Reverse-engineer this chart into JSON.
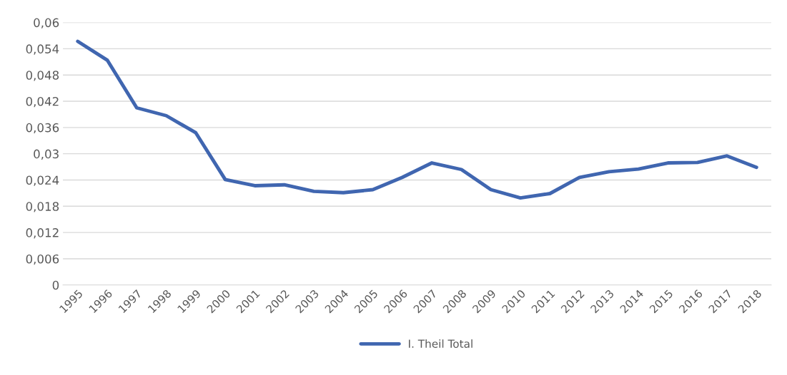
{
  "chart_data": {
    "type": "line",
    "categories": [
      "1995",
      "1996",
      "1997",
      "1998",
      "1999",
      "2000",
      "2001",
      "2002",
      "2003",
      "2004",
      "2005",
      "2006",
      "2007",
      "2008",
      "2009",
      "2010",
      "2011",
      "2012",
      "2013",
      "2014",
      "2015",
      "2016",
      "2017",
      "2018"
    ],
    "series": [
      {
        "name": "I. Theil Total",
        "color": "#4066b0",
        "values": [
          0.0557,
          0.0514,
          0.0405,
          0.0387,
          0.0348,
          0.0241,
          0.0227,
          0.0229,
          0.0214,
          0.0211,
          0.0218,
          0.0246,
          0.0279,
          0.0264,
          0.0218,
          0.0199,
          0.0209,
          0.0246,
          0.0259,
          0.0265,
          0.0279,
          0.028,
          0.0295,
          0.0269
        ]
      }
    ],
    "ylim": [
      0,
      0.06
    ],
    "yticks": [
      {
        "value": 0,
        "label": "0"
      },
      {
        "value": 0.006,
        "label": "0,006"
      },
      {
        "value": 0.012,
        "label": "0,012"
      },
      {
        "value": 0.018,
        "label": "0,018"
      },
      {
        "value": 0.024,
        "label": "0,024"
      },
      {
        "value": 0.03,
        "label": "0,03"
      },
      {
        "value": 0.036,
        "label": "0,036"
      },
      {
        "value": 0.042,
        "label": "0,042"
      },
      {
        "value": 0.048,
        "label": "0,048"
      },
      {
        "value": 0.054,
        "label": "0,054"
      },
      {
        "value": 0.06,
        "label": "0,06"
      }
    ],
    "grid": "y",
    "legend": "bottom"
  }
}
